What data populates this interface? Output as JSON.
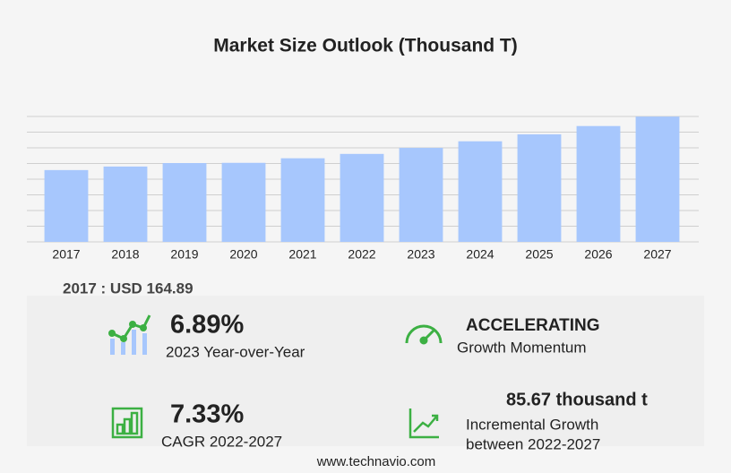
{
  "chart_data": {
    "type": "bar",
    "title": "Market Size Outlook   (Thousand T)",
    "categories": [
      "2017",
      "2018",
      "2019",
      "2020",
      "2021",
      "2022",
      "2023",
      "2024",
      "2025",
      "2026",
      "2027"
    ],
    "values": [
      164.89,
      173,
      181,
      181.5,
      192,
      202,
      215.9,
      231,
      247,
      266,
      287.67
    ],
    "color": "#a7c7fd",
    "ylim": [
      0,
      288
    ],
    "yticks": [
      0,
      36,
      72,
      108,
      144,
      180,
      216,
      252,
      288
    ],
    "grid": true
  },
  "base_label": "2017 : USD  164.89",
  "stats": [
    {
      "value": "6.89%",
      "label": "2023 Year-over-Year"
    },
    {
      "value": "ACCELERATING",
      "label": "Growth Momentum"
    },
    {
      "value": "7.33%",
      "label": "CAGR 2022-2027"
    },
    {
      "value": "85.67 thousand t",
      "label": "Incremental Growth",
      "label2": "between 2022-2027"
    }
  ],
  "footer": "www.technavio.com"
}
